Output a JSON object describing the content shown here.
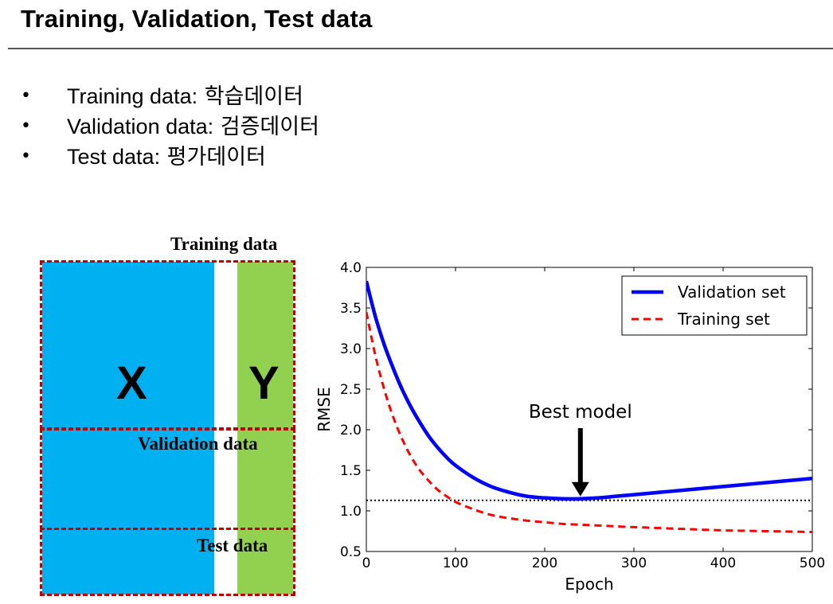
{
  "slide": {
    "title": "Training, Validation, Test data",
    "bullets": [
      {
        "term": "Training data:",
        "korean": "학습데이터"
      },
      {
        "term": "Validation data:",
        "korean": "검증데이터"
      },
      {
        "term": "Test data:",
        "korean": "평가데이터"
      }
    ],
    "bullet_glyph": "•"
  },
  "diagram": {
    "training_label": "Training data",
    "validation_label": "Validation data",
    "test_label": "Test data",
    "x_label": "X",
    "y_label": "Y",
    "colors": {
      "x": "#00b0f0",
      "y": "#92d050",
      "border": "#c00000"
    }
  },
  "chart_data": {
    "type": "line",
    "xlabel": "Epoch",
    "ylabel": "RMSE",
    "xlim": [
      0,
      500
    ],
    "ylim": [
      0.5,
      4.0
    ],
    "x_ticks": [
      0,
      100,
      200,
      300,
      400,
      500
    ],
    "y_ticks": [
      0.5,
      1.0,
      1.5,
      2.0,
      2.5,
      3.0,
      3.5,
      4.0
    ],
    "grid": false,
    "legend_position": "top-right",
    "series": [
      {
        "name": "Validation set",
        "style": "solid",
        "color": "#0000ff",
        "x": [
          0,
          10,
          20,
          30,
          40,
          50,
          60,
          70,
          80,
          90,
          100,
          120,
          140,
          160,
          180,
          200,
          220,
          240,
          260,
          280,
          300,
          330,
          360,
          400,
          440,
          470,
          500
        ],
        "y": [
          3.83,
          3.4,
          3.05,
          2.76,
          2.5,
          2.28,
          2.09,
          1.92,
          1.78,
          1.66,
          1.56,
          1.41,
          1.3,
          1.23,
          1.18,
          1.16,
          1.15,
          1.15,
          1.16,
          1.18,
          1.2,
          1.23,
          1.26,
          1.3,
          1.34,
          1.37,
          1.4
        ]
      },
      {
        "name": "Training set",
        "style": "dashed",
        "color": "#ff0000",
        "x": [
          0,
          10,
          20,
          30,
          40,
          50,
          60,
          70,
          80,
          90,
          100,
          120,
          140,
          160,
          180,
          200,
          220,
          240,
          260,
          300,
          350,
          400,
          450,
          500
        ],
        "y": [
          3.45,
          2.92,
          2.5,
          2.16,
          1.89,
          1.67,
          1.5,
          1.37,
          1.26,
          1.18,
          1.11,
          1.02,
          0.95,
          0.91,
          0.88,
          0.86,
          0.84,
          0.83,
          0.82,
          0.8,
          0.78,
          0.76,
          0.75,
          0.74
        ]
      }
    ],
    "reference_line": {
      "y": 1.13,
      "style": "dotted",
      "color": "#000000"
    },
    "annotation": {
      "text": "Best model",
      "x": 240,
      "y": 1.15,
      "arrow": "down"
    }
  }
}
